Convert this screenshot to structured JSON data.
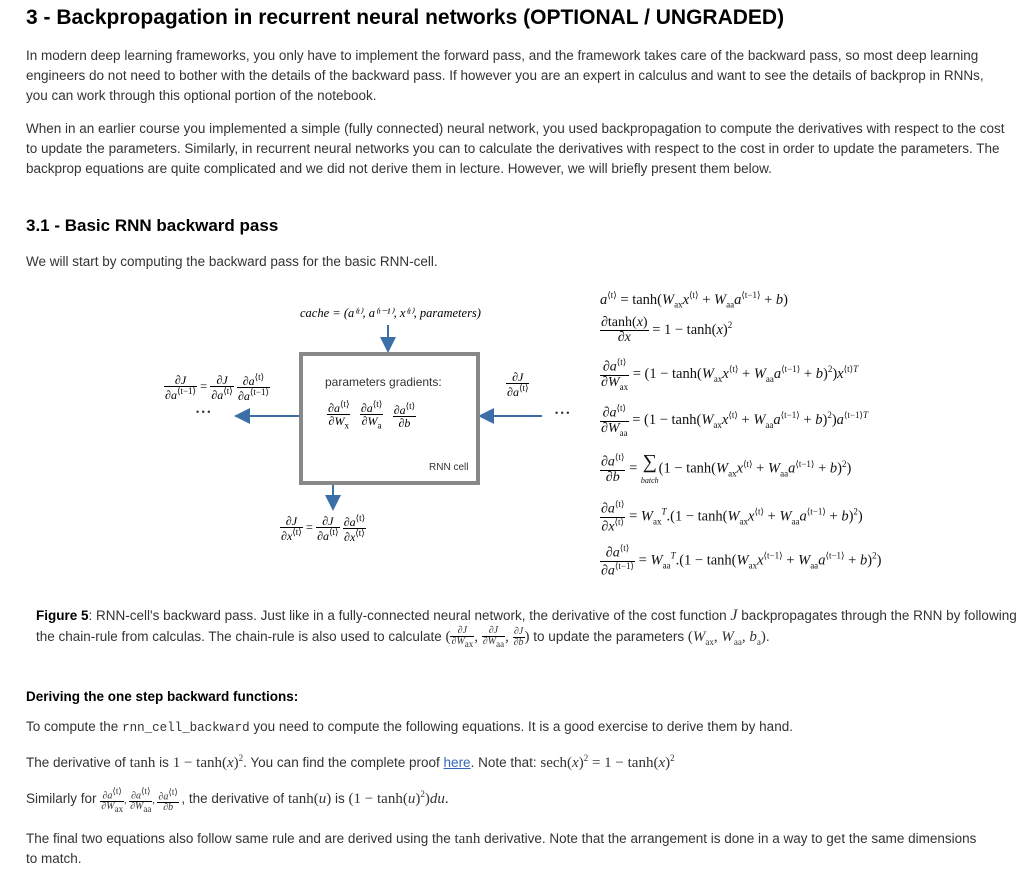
{
  "section_title": "3 - Backpropagation in recurrent neural networks (OPTIONAL / UNGRADED)",
  "intro_paragraph_1": "In modern deep learning frameworks, you only have to implement the forward pass, and the framework takes care of the backward pass, so most deep learning engineers do not need to bother with the details of the backward pass. If however you are an expert in calculus and want to see the details of backprop in RNNs, you can work through this optional portion of the notebook.",
  "intro_paragraph_2": "When in an earlier course you implemented a simple (fully connected) neural network, you used backpropagation to compute the derivatives with respect to the cost to update the parameters. Similarly, in recurrent neural networks you can to calculate the derivatives with respect to the cost in order to update the parameters. The backprop equations are quite complicated and we did not derive them in lecture. However, we will briefly present them below.",
  "subsection_title": "3.1 - Basic RNN backward pass",
  "subsection_intro": "We will start by computing the backward pass for the basic RNN-cell.",
  "diagram": {
    "cache_label": "cache = (a⁽ᵗ⁾, a⁽ᵗ⁻¹⁾, x⁽ᵗ⁾, parameters)",
    "box_title": "parameters gradients:",
    "cell_label": "RNN cell",
    "ellipsis": "• • •"
  },
  "figure_caption": {
    "label": "Figure 5",
    "text_1": ": RNN-cell's backward pass. Just like in a fully-connected neural network, the derivative of the cost function",
    "text_2": "backpropagates through the RNN by following the chain-rule from calculas. The chain-rule is also used to calculate",
    "text_3": "to update the parameters",
    "text_4": "."
  },
  "deriving_heading": "Deriving the one step backward functions:",
  "deriving_line_1": {
    "prefix": "To compute the",
    "code": "rnn_cell_backward",
    "suffix": "you need to compute the following equations. It is a good exercise to derive them by hand."
  },
  "deriving_line_2": {
    "prefix": "The derivative of",
    "mid": "is",
    "proof_text": ". You can find the complete proof",
    "link_text": "here",
    "note": ". Note that:"
  },
  "deriving_line_3": {
    "prefix": "Similarly for",
    "mid": ", the derivative of",
    "is": "is"
  },
  "final_paragraph": {
    "part_1": "The final two equations also follow same rule and are derived using the",
    "part_2": "derivative. Note that the arrangement is done in a way to get the same dimensions to match."
  }
}
